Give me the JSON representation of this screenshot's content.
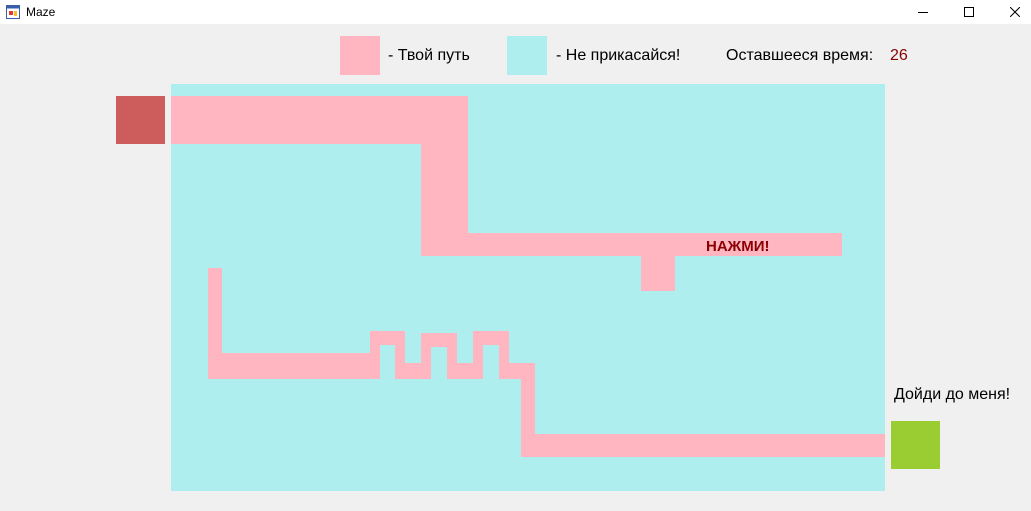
{
  "window": {
    "title": "Maze",
    "icon": "app-form-icon",
    "controls": [
      "minimize-icon",
      "maximize-icon",
      "close-icon"
    ]
  },
  "legend": {
    "path_label": "- Твой путь",
    "wall_label": "- Не прикасайся!",
    "path_color": "#ffb6c1",
    "wall_color": "#afeeee"
  },
  "timer": {
    "label": "Оставшееся время:",
    "value": "26",
    "color": "#8b0000"
  },
  "maze": {
    "press_label": "НАЖМИ!",
    "press_color": "#8b0000",
    "goal_label": "Дойди до меня!",
    "start_color": "#cd5c5c",
    "finish_color": "#9acd32"
  }
}
